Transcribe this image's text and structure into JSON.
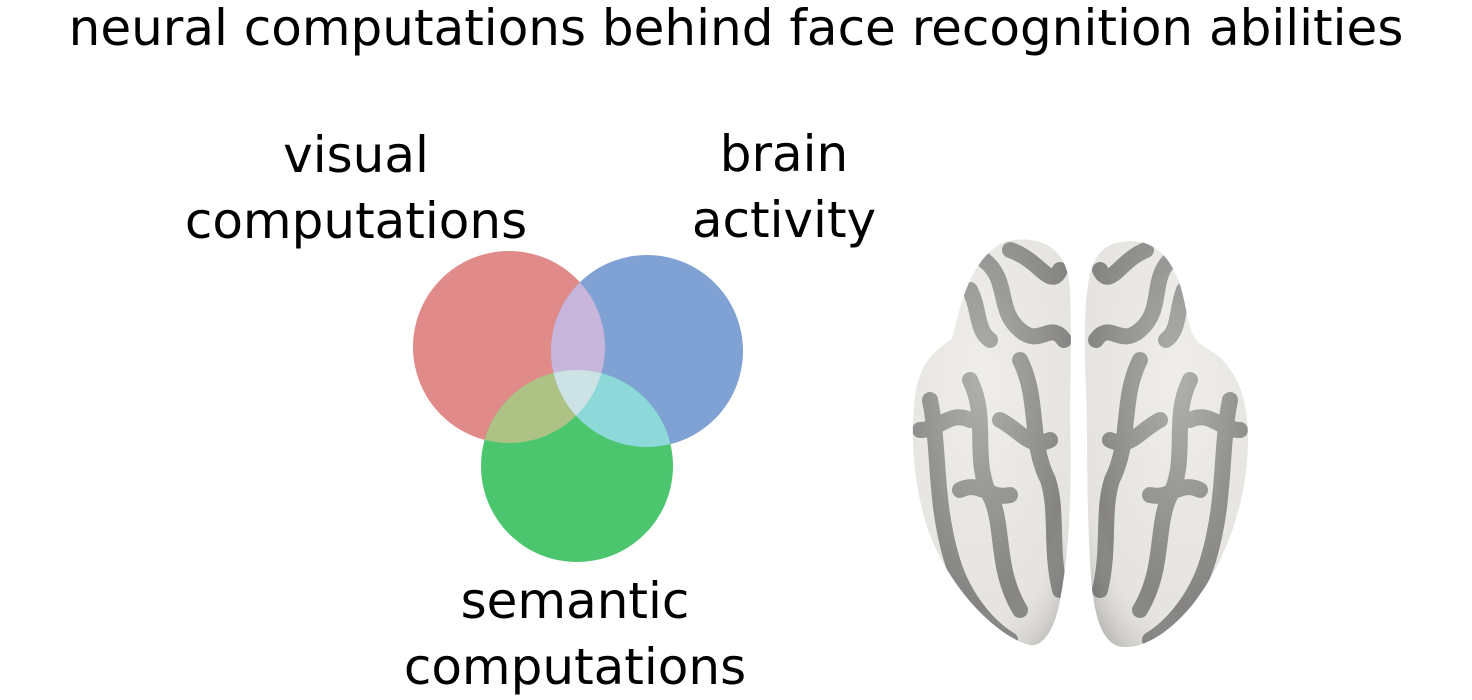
{
  "title": "neural computations behind face recognition abilities",
  "venn": {
    "sets": [
      {
        "id": "visual",
        "label_lines": [
          "visual",
          "computations"
        ],
        "color": "#e08a89"
      },
      {
        "id": "brain",
        "label_lines": [
          "brain",
          "activity"
        ],
        "color": "#7fa1d3"
      },
      {
        "id": "semantic",
        "label_lines": [
          "semantic",
          "computations"
        ],
        "color": "#4bc66f"
      }
    ],
    "overlap_colors": {
      "visual_brain": "#c8b5dc",
      "visual_semantic": "#afc285",
      "brain_semantic": "#8dd8d8",
      "all": "#cde2e4"
    }
  },
  "brain_image": {
    "icon": "inflated-cortical-surface-ventral-view",
    "colors": {
      "gyri": "#e6e4e0",
      "sulci": "#858482"
    }
  }
}
